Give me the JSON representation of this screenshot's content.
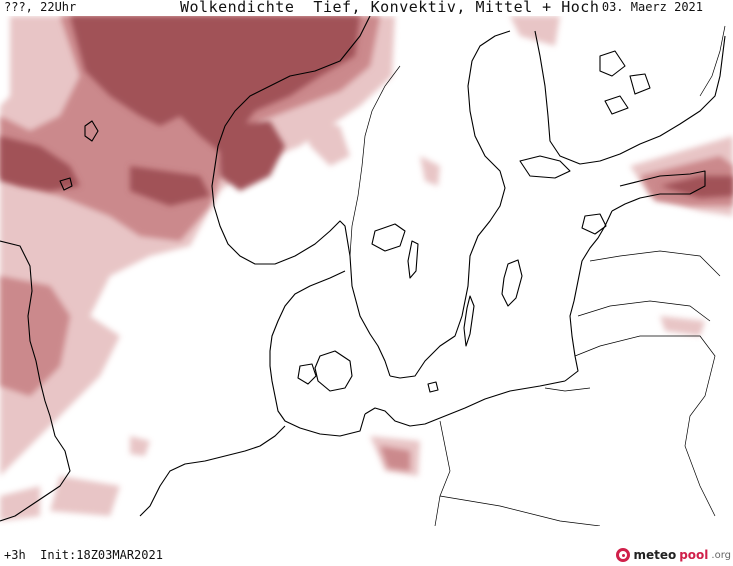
{
  "header": {
    "left": "???, 22Uhr",
    "title": "Wolkendichte  Tief, Konvektiv, Mittel + Hoch",
    "date": "03. Maerz 2021"
  },
  "footer": {
    "run": "+3h  Init:18Z03MAR2021"
  },
  "logo": {
    "part1": "meteo",
    "part2": "pool",
    "part3": ".org"
  },
  "map": {
    "cloud_color_dark": "#9b4a4e",
    "cloud_color_mid": "#c2797d",
    "cloud_color_light": "#e8c3c4",
    "coast_color": "#000000"
  }
}
